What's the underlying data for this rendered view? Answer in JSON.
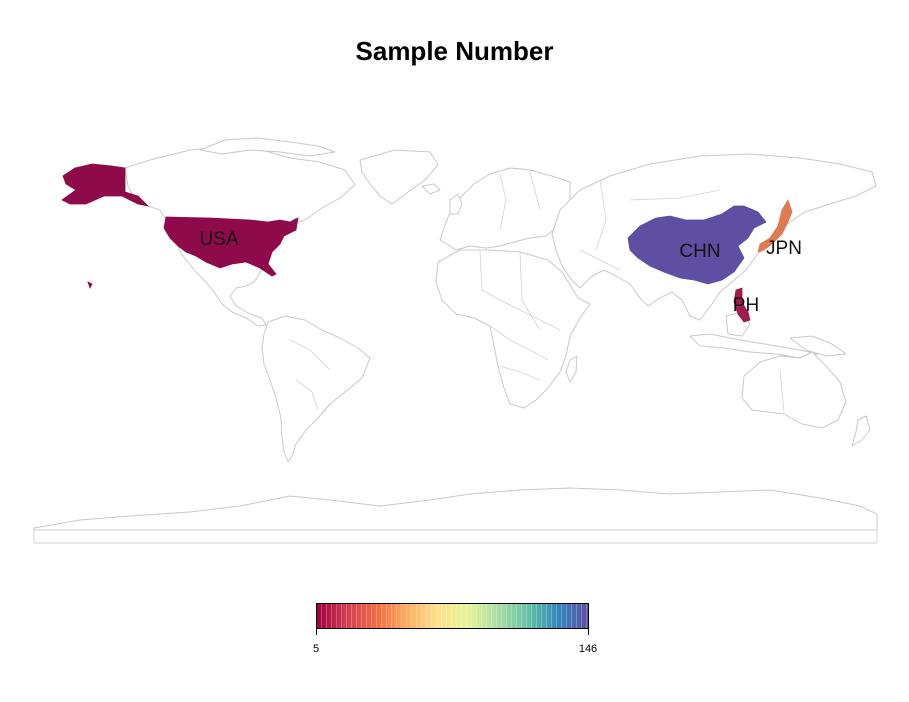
{
  "title": "Sample Number",
  "map": {
    "regions": [
      {
        "code": "USA",
        "label": "USA",
        "value": 5,
        "color": "#8e0a4a"
      },
      {
        "code": "CHN",
        "label": "CHN",
        "value": 146,
        "color": "#5e4fa2"
      },
      {
        "code": "JPN",
        "label": "JPN",
        "value": 25,
        "color": "#e07a52"
      },
      {
        "code": "PH",
        "label": "PH",
        "value": 8,
        "color": "#9e1d4a"
      }
    ]
  },
  "legend": {
    "min_label": "5",
    "max_label": "146",
    "colors": [
      "#9e0142",
      "#d53e4f",
      "#f46d43",
      "#fdae61",
      "#fee08b",
      "#e6f598",
      "#abdda4",
      "#66c2a5",
      "#3288bd",
      "#5e4fa2"
    ]
  }
}
